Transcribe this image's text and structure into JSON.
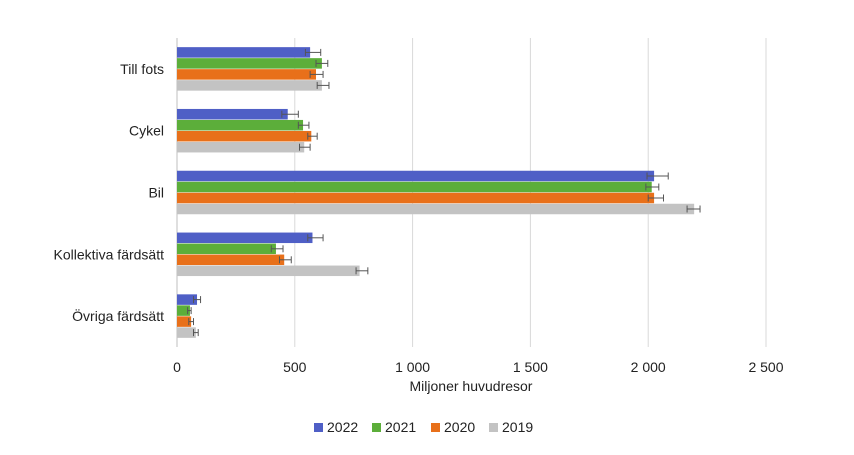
{
  "chart_data": {
    "type": "bar",
    "orientation": "horizontal",
    "categories": [
      "Till fots",
      "Cykel",
      "Bil",
      "Kollektiva färdsätt",
      "Övriga färdsätt"
    ],
    "series": [
      {
        "name": "2022",
        "color": "#4f5fc6",
        "values": [
          565,
          470,
          2025,
          575,
          85
        ],
        "error_low": [
          545,
          445,
          1995,
          555,
          70
        ],
        "error_high": [
          610,
          515,
          2085,
          620,
          100
        ]
      },
      {
        "name": "2021",
        "color": "#5cae3a",
        "values": [
          615,
          535,
          2015,
          420,
          55
        ],
        "error_low": [
          590,
          515,
          1990,
          400,
          45
        ],
        "error_high": [
          640,
          560,
          2045,
          450,
          60
        ]
      },
      {
        "name": "2020",
        "color": "#e8701a",
        "values": [
          590,
          570,
          2025,
          455,
          60
        ],
        "error_low": [
          565,
          555,
          2000,
          435,
          50
        ],
        "error_high": [
          620,
          595,
          2065,
          485,
          70
        ]
      },
      {
        "name": "2019",
        "color": "#c3c3c3",
        "values": [
          615,
          540,
          2195,
          775,
          80
        ],
        "error_low": [
          595,
          520,
          2165,
          760,
          70
        ],
        "error_high": [
          645,
          565,
          2220,
          810,
          90
        ]
      }
    ],
    "x_ticks": [
      "0",
      "500",
      "1 000",
      "1 500",
      "2 000",
      "2 500"
    ],
    "tick_values": [
      0,
      500,
      1000,
      1500,
      2000,
      2500
    ],
    "xlabel": "Miljoner huvudresor",
    "ylabel": "",
    "xlim": [
      0,
      2500
    ],
    "grid": "vertical",
    "legend_position": "bottom",
    "error_bars": true,
    "colors": {
      "grid": "#d9d9d9",
      "errorbar": "#555555"
    }
  }
}
